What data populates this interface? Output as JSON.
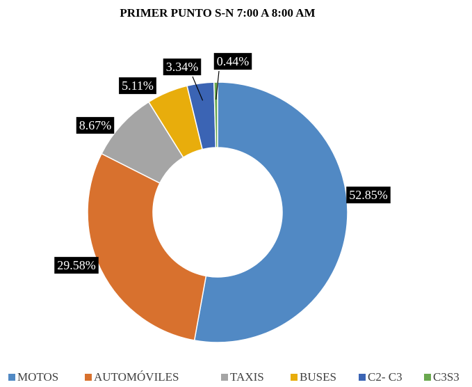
{
  "chart_data": {
    "type": "donut",
    "title": "PRIMER PUNTO S-N 7:00 A 8:00 AM",
    "categories": [
      "MOTOS",
      "AUTOMÓVILES",
      "TAXIS",
      "BUSES",
      "C2- C3",
      "C3S3"
    ],
    "values": [
      52.85,
      29.58,
      8.67,
      5.11,
      3.34,
      0.44
    ],
    "value_labels": [
      "52.85%",
      "29.58%",
      "8.67%",
      "5.11%",
      "3.34%",
      "0.44%"
    ],
    "colors": [
      "#5189c4",
      "#d8712e",
      "#a5a5a5",
      "#e8ad0c",
      "#3b64b4",
      "#6aa84f"
    ],
    "legend": "bottom"
  }
}
